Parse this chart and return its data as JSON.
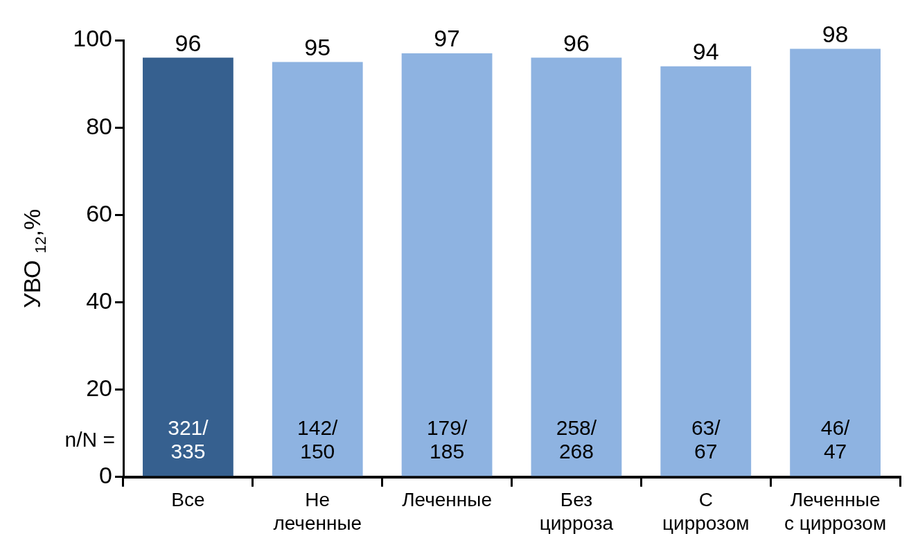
{
  "chart_data": {
    "type": "bar",
    "ylabel": "УВО $_{12}$,%",
    "categories": [
      "Все",
      "Не\nлеченные",
      "Леченные",
      "Без\nцирроза",
      "С\nциррозом",
      "Леченные\nс циррозом"
    ],
    "values": [
      96,
      95,
      97,
      96,
      94,
      98
    ],
    "colors": [
      "#36608f",
      "#8eb3e1",
      "#8eb3e1",
      "#8eb3e1",
      "#8eb3e1",
      "#8eb3e1"
    ],
    "ylim": [
      0,
      100
    ],
    "yticks": [
      0,
      20,
      40,
      60,
      80,
      100
    ],
    "grid": false,
    "legend": false,
    "data_labels": true,
    "annotations": [
      "321/\n335",
      "142/\n150",
      "179/\n185",
      "258/\n268",
      "63/\n67",
      "46/\n47",
      "n/N ="
    ]
  }
}
